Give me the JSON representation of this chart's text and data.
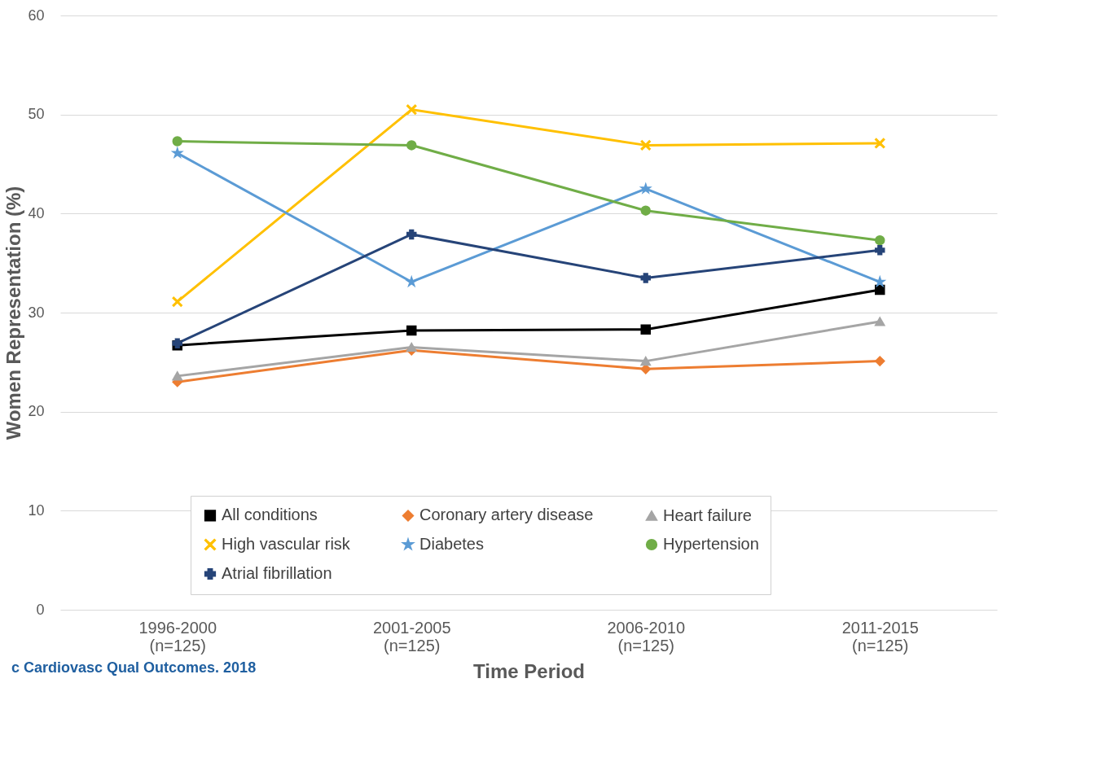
{
  "chart_data": {
    "type": "line",
    "xlabel": "Time Period",
    "ylabel": "Women Representation (%)",
    "categories": [
      "1996-2000\n(n=125)",
      "2001-2005\n(n=125)",
      "2006-2010\n(n=125)",
      "2011-2015\n(n=125)"
    ],
    "ylim": [
      0,
      60
    ],
    "yticks": [
      0,
      10,
      20,
      30,
      40,
      50,
      60
    ],
    "grid": "y",
    "legend": "bottom",
    "annotations": [
      "c Cardiovasc Qual Outcomes. 2018"
    ],
    "series": [
      {
        "name": "All conditions",
        "color": "#000000",
        "marker": "square",
        "values": [
          26.7,
          28.2,
          28.3,
          32.3
        ]
      },
      {
        "name": "Coronary artery disease",
        "color": "#ed7d31",
        "marker": "diamond",
        "values": [
          23.0,
          26.2,
          24.3,
          25.1
        ]
      },
      {
        "name": "Heart failure",
        "color": "#a5a5a5",
        "marker": "triangle",
        "values": [
          23.6,
          26.5,
          25.1,
          29.1
        ]
      },
      {
        "name": "High vascular risk",
        "color": "#ffc000",
        "marker": "cross",
        "values": [
          31.1,
          50.5,
          46.9,
          47.1
        ]
      },
      {
        "name": "Diabetes",
        "color": "#5b9bd5",
        "marker": "star",
        "values": [
          46.1,
          33.1,
          42.5,
          33.1
        ]
      },
      {
        "name": "Hypertension",
        "color": "#70ad47",
        "marker": "circle",
        "values": [
          47.3,
          46.9,
          40.3,
          37.3
        ]
      },
      {
        "name": "Atrial fibrillation",
        "color": "#264478",
        "marker": "plus",
        "values": [
          26.9,
          37.9,
          33.5,
          36.3
        ]
      }
    ]
  }
}
